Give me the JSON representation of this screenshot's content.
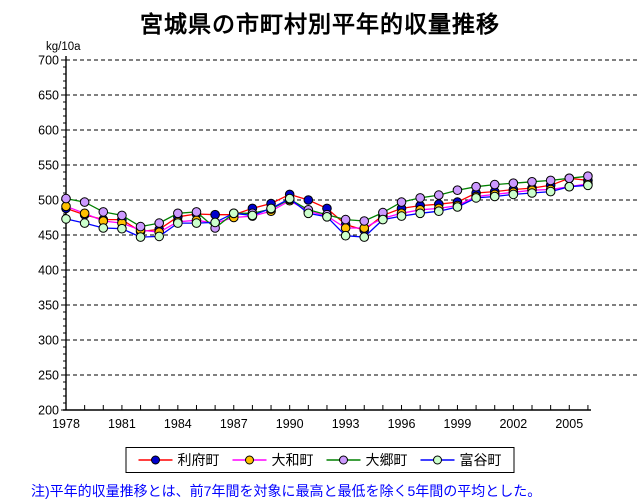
{
  "title": "宮城県の市町村別平年的収量推移",
  "note": "注)平年的収量推移とは、前7年間を対象に最高と最低を除く5年間の平均とした。",
  "chart_data": {
    "type": "line",
    "title": "宮城県の市町村別平年的収量推移",
    "ylabel_unit": "kg/10a",
    "ylim": [
      200,
      700
    ],
    "ytick_step": 50,
    "ytick_minor_step": 10,
    "grid": "horizontal-dashed-black",
    "legend_position": "bottom-center",
    "x": [
      1978,
      1979,
      1980,
      1981,
      1982,
      1983,
      1984,
      1985,
      1986,
      1987,
      1988,
      1989,
      1990,
      1991,
      1992,
      1993,
      1994,
      1995,
      1996,
      1997,
      1998,
      1999,
      2000,
      2001,
      2002,
      2003,
      2004,
      2005,
      2006
    ],
    "xtick_labels": [
      "1978",
      "1981",
      "1984",
      "1987",
      "1990",
      "1993",
      "1996",
      "1999",
      "2002",
      "2005"
    ],
    "series": [
      {
        "name": "利府町",
        "line_color": "#ff0000",
        "marker_color": "#0000cd",
        "values": [
          488,
          479,
          472,
          472,
          455,
          458,
          476,
          480,
          479,
          479,
          488,
          495,
          508,
          500,
          488,
          465,
          457,
          478,
          488,
          492,
          494,
          497,
          510,
          512,
          515,
          517,
          521,
          531,
          528
        ]
      },
      {
        "name": "大和町",
        "line_color": "#ff00ff",
        "marker_color": "#ffc000",
        "values": [
          491,
          481,
          470,
          467,
          457,
          454,
          469,
          471,
          467,
          475,
          477,
          484,
          499,
          484,
          477,
          460,
          460,
          474,
          481,
          486,
          488,
          492,
          505,
          508,
          511,
          514,
          515,
          519,
          523
        ]
      },
      {
        "name": "大郷町",
        "line_color": "#008000",
        "marker_color": "#cc99ff",
        "values": [
          502,
          497,
          483,
          478,
          462,
          467,
          481,
          483,
          460,
          481,
          481,
          487,
          501,
          486,
          479,
          472,
          470,
          482,
          497,
          503,
          507,
          514,
          519,
          522,
          524,
          526,
          528,
          531,
          534
        ]
      },
      {
        "name": "富谷町",
        "line_color": "#0000ff",
        "marker_color": "#ccffcc",
        "values": [
          473,
          467,
          460,
          459,
          447,
          448,
          467,
          467,
          468,
          481,
          478,
          488,
          502,
          481,
          476,
          449,
          447,
          472,
          477,
          481,
          484,
          490,
          503,
          505,
          508,
          510,
          512,
          519,
          521
        ]
      }
    ]
  }
}
